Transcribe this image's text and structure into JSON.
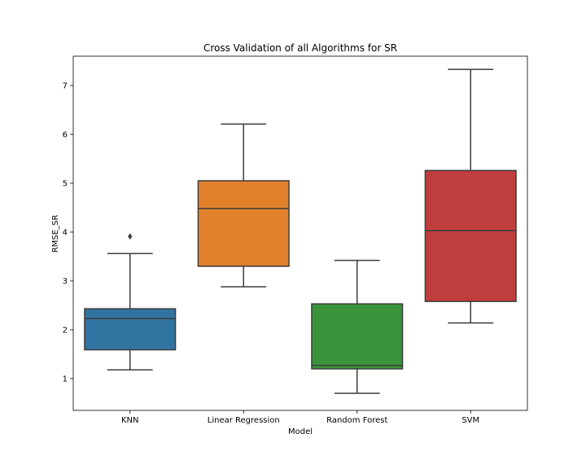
{
  "chart_data": {
    "type": "box",
    "title": "Cross Validation of all Algorithms for SR",
    "xlabel": "Model",
    "ylabel": "RMSE_SR",
    "ylim": [
      0.35,
      7.6
    ],
    "yticks": [
      1,
      2,
      3,
      4,
      5,
      6,
      7
    ],
    "grid": false,
    "legend": "none",
    "categories": [
      "KNN",
      "Linear Regression",
      "Random Forest",
      "SVM"
    ],
    "boxes": [
      {
        "category": "KNN",
        "whisker_low": 1.18,
        "q1": 1.59,
        "median": 2.23,
        "q3": 2.43,
        "whisker_high": 3.56,
        "outliers": [
          3.91
        ],
        "color": "#3274a1"
      },
      {
        "category": "Linear Regression",
        "whisker_low": 2.88,
        "q1": 3.3,
        "median": 4.48,
        "q3": 5.05,
        "whisker_high": 6.21,
        "outliers": [],
        "color": "#e1812c"
      },
      {
        "category": "Random Forest",
        "whisker_low": 0.7,
        "q1": 1.2,
        "median": 1.27,
        "q3": 2.53,
        "whisker_high": 3.42,
        "outliers": [],
        "color": "#3a923a"
      },
      {
        "category": "SVM",
        "whisker_low": 2.14,
        "q1": 2.58,
        "median": 4.03,
        "q3": 5.26,
        "whisker_high": 7.33,
        "outliers": [],
        "color": "#c03d3e"
      }
    ]
  }
}
